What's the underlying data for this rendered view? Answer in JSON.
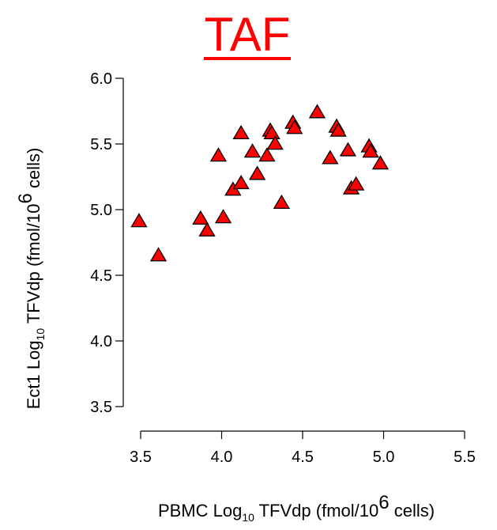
{
  "chart_data": {
    "type": "scatter",
    "title": "TAF",
    "title_color": "#ff0000",
    "xlabel": {
      "prefix": "PBMC Log",
      "sub": "10",
      "middle": " TFVdp (fmol/10",
      "sup": "6",
      "suffix": " cells)"
    },
    "ylabel": {
      "prefix": "Ect1 Log",
      "sub": "10",
      "middle": " TFVdp (fmol/10",
      "sup": "6",
      "suffix": " cells)"
    },
    "xlim": [
      3.5,
      5.5
    ],
    "ylim": [
      3.5,
      6.0
    ],
    "xticks": [
      3.5,
      4.0,
      4.5,
      5.0,
      5.5
    ],
    "xtick_labels": [
      "3.5",
      "4.0",
      "4.5",
      "5.0",
      "5.5"
    ],
    "yticks": [
      3.5,
      4.0,
      4.5,
      5.0,
      5.5,
      6.0
    ],
    "ytick_labels": [
      "3.5",
      "4.0",
      "4.5",
      "5.0",
      "5.5",
      "6.0"
    ],
    "grid": false,
    "marker": "triangle",
    "marker_fill": "#ff0000",
    "marker_stroke": "#000000",
    "x": [
      3.49,
      3.61,
      3.87,
      3.91,
      3.98,
      4.01,
      4.07,
      4.12,
      4.12,
      4.19,
      4.22,
      4.28,
      4.3,
      4.31,
      4.33,
      4.37,
      4.44,
      4.45,
      4.59,
      4.67,
      4.71,
      4.72,
      4.78,
      4.8,
      4.83,
      4.91,
      4.92,
      4.98
    ],
    "y": [
      4.91,
      4.65,
      4.93,
      4.84,
      5.41,
      4.94,
      5.15,
      5.58,
      5.2,
      5.44,
      5.27,
      5.41,
      5.6,
      5.58,
      5.5,
      5.05,
      5.66,
      5.62,
      5.74,
      5.39,
      5.63,
      5.6,
      5.45,
      5.16,
      5.19,
      5.48,
      5.44,
      5.35
    ]
  }
}
